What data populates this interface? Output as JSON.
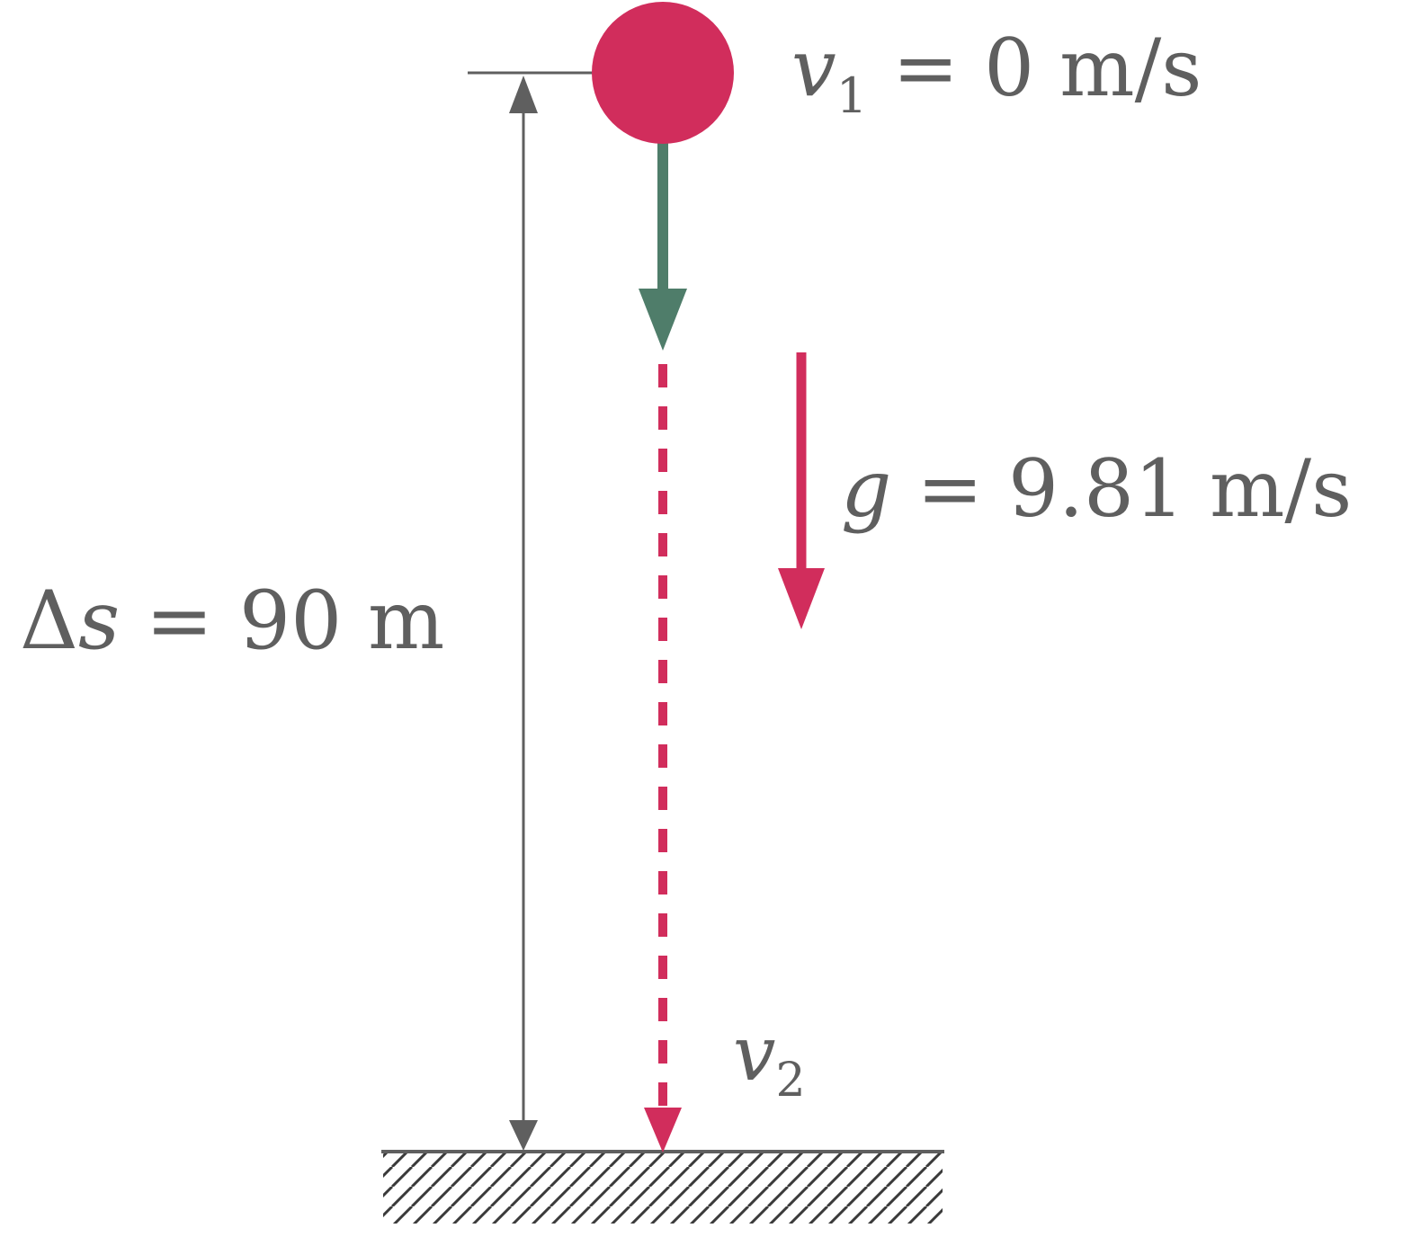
{
  "labels": {
    "v1": {
      "symbol": "v",
      "subscript": "1",
      "equals": "=",
      "value": "0",
      "unit": "m/s"
    },
    "g": {
      "symbol": "g",
      "equals": "=",
      "value": "9.81",
      "unit": "m/s"
    },
    "ds": {
      "delta": "Δ",
      "symbol": "s",
      "equals": "=",
      "value": "90",
      "unit": "m"
    },
    "v2": {
      "symbol": "v",
      "subscript": "2"
    }
  },
  "colors": {
    "ball": "#d12d5c",
    "velocity_arrow": "#4f7d6a",
    "gravity_arrow": "#d12d5c",
    "trajectory": "#d12d5c",
    "dimension": "#5f5f5f",
    "ground": "#5f5f5f",
    "text": "#5f5f5f"
  }
}
